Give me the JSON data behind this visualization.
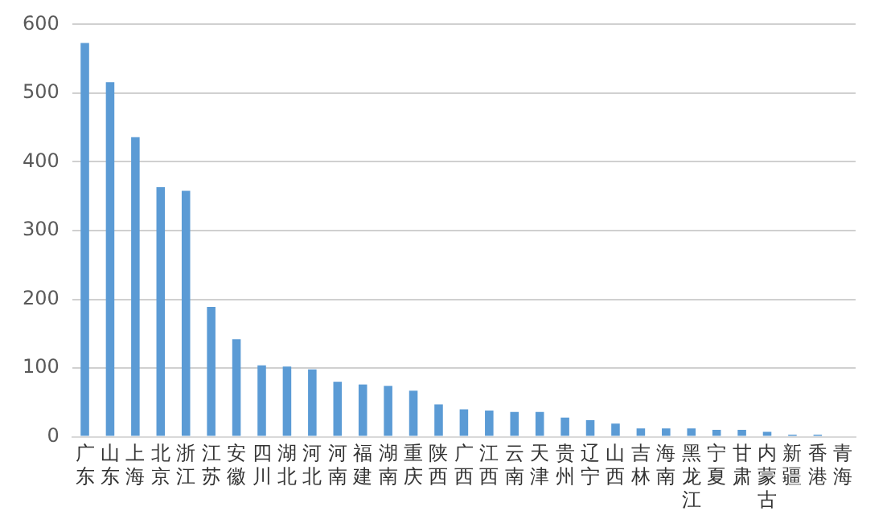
{
  "chart_data": {
    "type": "bar",
    "categories": [
      "广东",
      "山东",
      "上海",
      "北京",
      "浙江",
      "江苏",
      "安徽",
      "四川",
      "湖北",
      "河北",
      "河南",
      "福建",
      "湖南",
      "重庆",
      "陕西",
      "广西",
      "江西",
      "云南",
      "天津",
      "贵州",
      "辽宁",
      "山西",
      "吉林",
      "海南",
      "黑龙江",
      "宁夏",
      "甘肃",
      "内蒙古",
      "新疆",
      "香港",
      "青海"
    ],
    "values": [
      573,
      516,
      436,
      363,
      358,
      189,
      142,
      104,
      102,
      98,
      80,
      76,
      74,
      67,
      47,
      40,
      38,
      36,
      36,
      28,
      24,
      19,
      12,
      12,
      12,
      10,
      10,
      7,
      3,
      3,
      null
    ],
    "color": "#5b9bd5",
    "ylim": [
      0,
      600
    ],
    "yticks": [
      0,
      100,
      200,
      300,
      400,
      500,
      600
    ],
    "grid": "y",
    "legend": false
  }
}
